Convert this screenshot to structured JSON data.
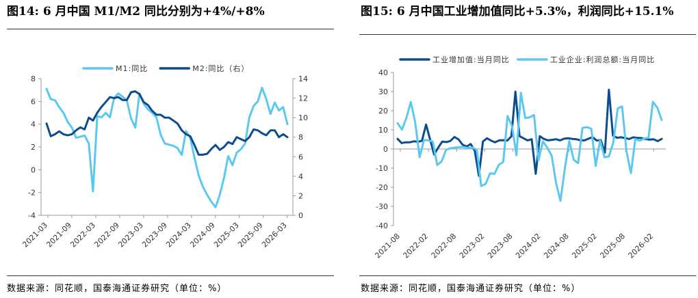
{
  "colors": {
    "light": "#5BC8F0",
    "dark": "#0B4C8C",
    "axis": "#999999"
  },
  "charts": [
    {
      "title": "图14:  6 月中国 M1/M2 同比分别为+4%/+8%",
      "source": "数据来源：同花顺，国泰海通证券研究（单位：%）",
      "chart_data": {
        "type": "line",
        "x_ticks": [
          "2021-03",
          "2021-09",
          "2022-03",
          "2022-09",
          "2023-03",
          "2023-09",
          "2024-03",
          "2024-09",
          "2025-03",
          "2025-09",
          "2026-03"
        ],
        "ylim": [
          -4,
          8
        ],
        "y_ticks": [
          "8",
          "6",
          "4",
          "2",
          "0",
          "-2",
          "-4"
        ],
        "y2lim": [
          0,
          14
        ],
        "y2_ticks": [
          "14",
          "12",
          "10",
          "8",
          "6",
          "4",
          "2",
          "0"
        ],
        "series": [
          {
            "name": "M1:同比",
            "axis": "left",
            "color": "#5BC8F0",
            "values": [
              7.1,
              6.2,
              6.1,
              5.5,
              5.0,
              4.2,
              3.7,
              2.8,
              2.9,
              3.0,
              2.3,
              -1.9,
              4.7,
              4.6,
              5.0,
              4.6,
              6.3,
              6.7,
              6.4,
              6.1,
              4.5,
              3.7,
              6.7,
              5.8,
              5.3,
              5.0,
              4.6,
              3.1,
              2.3,
              2.2,
              2.1,
              1.9,
              1.3,
              3.4,
              2.8,
              1.1,
              -0.5,
              -1.5,
              -2.2,
              -2.8,
              -3.3,
              -2.2,
              -0.7,
              1.2,
              0.4,
              1.5,
              1.8,
              2.3,
              4.6,
              5.6,
              6.0,
              7.2,
              6.2,
              4.9,
              5.9,
              5.2,
              5.5,
              4.0
            ]
          },
          {
            "name": "M2:同比（右）",
            "axis": "right",
            "color": "#0B4C8C",
            "values": [
              9.4,
              8.1,
              8.3,
              8.6,
              8.3,
              8.2,
              8.3,
              8.7,
              9.0,
              8.8,
              10.0,
              9.7,
              10.5,
              11.1,
              11.6,
              12.1,
              12.0,
              12.1,
              11.8,
              11.8,
              12.6,
              12.7,
              12.4,
              11.6,
              11.3,
              10.7,
              10.3,
              10.3,
              10.0,
              10.0,
              9.7,
              9.4,
              8.7,
              8.3,
              8.1,
              7.2,
              6.2,
              6.2,
              6.3,
              6.8,
              7.2,
              6.7,
              7.0,
              7.5,
              7.3,
              8.0,
              7.8,
              7.6,
              8.0,
              8.8,
              8.7,
              8.4,
              8.2,
              8.7,
              8.7,
              8.0,
              8.3,
              8.0
            ]
          }
        ]
      }
    },
    {
      "title": "图15:  6 月中国工业增加值同比+5.3%，利润同比+15.1%",
      "source": "数据来源：同花顺，国泰海通证券研究（单位：%）",
      "chart_data": {
        "type": "line",
        "x_ticks": [
          "2021-08",
          "2022-02",
          "2022-08",
          "2023-02",
          "2023-08",
          "2024-02",
          "2024-08",
          "2025-02",
          "2025-08",
          "2026-02"
        ],
        "ylim": [
          -40,
          40
        ],
        "y_ticks": [
          "40",
          "30",
          "20",
          "10",
          "0",
          "-10",
          "-20",
          "-30",
          "-40"
        ],
        "series": [
          {
            "name": "工业增加值:当月同比",
            "axis": "left",
            "color": "#0B4C8C",
            "values": [
              5.3,
              3.1,
              3.5,
              3.5,
              4.0,
              3.8,
              4.3,
              12.8,
              5.0,
              -2.9,
              0.7,
              3.9,
              3.6,
              4.2,
              6.3,
              5.0,
              2.2,
              1.3,
              2.6,
              -1.0,
              -14.0,
              3.9,
              5.6,
              4.4,
              3.5,
              4.5,
              4.6,
              4.4,
              6.6,
              30.0,
              6.7,
              5.6,
              4.5,
              5.1,
              -13.0,
              6.7,
              5.3,
              4.5,
              4.8,
              5.1,
              4.5,
              5.4,
              5.6,
              5.3,
              5.1,
              4.5,
              4.5,
              5.4,
              6.2,
              4.4,
              4.7,
              -1.9,
              31.0,
              7.0,
              5.9,
              6.1,
              5.7,
              5.2,
              6.1,
              5.8,
              5.7,
              5.2,
              4.9,
              5.1,
              4.1,
              5.3
            ]
          },
          {
            "name": "工业企业:利润总额:当月同比",
            "axis": "left",
            "color": "#5BC8F0",
            "values": [
              13.5,
              10.1,
              16.3,
              24.6,
              14.0,
              -4.3,
              4.7,
              4.5,
              3.9,
              -8.4,
              -6.5,
              -0.5,
              0.4,
              0.7,
              1.0,
              1.0,
              0.5,
              0.8,
              -0.4,
              -19.4,
              -18.2,
              -12.7,
              -13.0,
              -8.3,
              -6.7,
              17.2,
              11.9,
              -3.3,
              29.4,
              16.2,
              16.5,
              17.8,
              -6.0,
              4.0,
              0.7,
              -3.5,
              -17.8,
              -27.1,
              -10.0,
              4.3,
              -5.6,
              -7.4,
              11.0,
              11.4,
              10.6,
              -8.9,
              4.5,
              -4.3,
              -3.9,
              3.4,
              21.2,
              22.2,
              -1.2,
              -12.6,
              5.2,
              4.3,
              5.5,
              5.9,
              24.6,
              21.6,
              15.1
            ]
          }
        ]
      }
    }
  ]
}
